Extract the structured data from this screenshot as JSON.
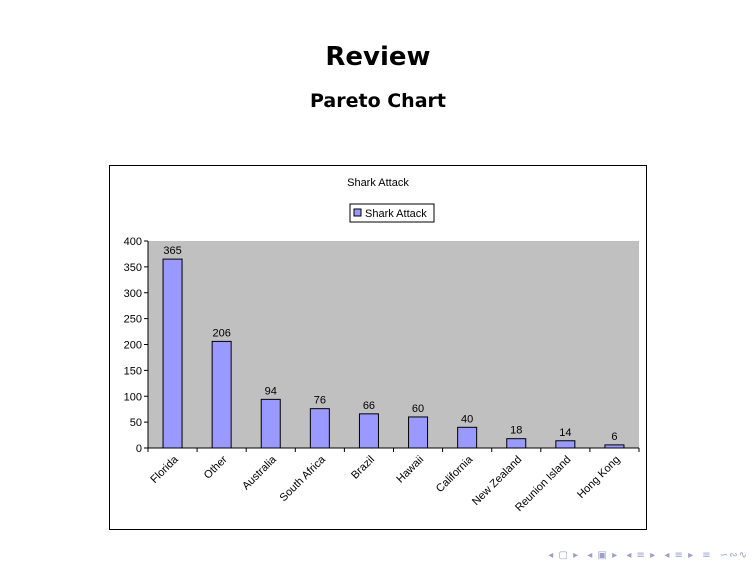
{
  "slide": {
    "title": "Review",
    "subtitle": "Pareto Chart"
  },
  "chart_data": {
    "type": "bar",
    "title": "Shark Attack",
    "legend": {
      "entries": [
        "Shark Attack"
      ],
      "placement": "top"
    },
    "categories": [
      "Florida",
      "Other",
      "Australia",
      "South Africa",
      "Brazil",
      "Hawaii",
      "California",
      "New Zealand",
      "Reunion Island",
      "Hong Kong"
    ],
    "series": [
      {
        "name": "Shark Attack",
        "values": [
          365,
          206,
          94,
          76,
          66,
          60,
          40,
          18,
          14,
          6
        ]
      }
    ],
    "data_labels": [
      "365",
      "206",
      "94",
      "76",
      "66",
      "60",
      "40",
      "18",
      "14",
      "6"
    ],
    "ylim": [
      0,
      400
    ],
    "yticks": [
      0,
      50,
      100,
      150,
      200,
      250,
      300,
      350,
      400
    ],
    "ytick_labels": [
      "0",
      "50",
      "100",
      "150",
      "200",
      "250",
      "300",
      "350",
      "400"
    ],
    "xlabel": "",
    "ylabel": "",
    "grid": false,
    "colors": {
      "bar": "#9999ff",
      "plot_background": "#c0c0c0",
      "bar_edge": "#000000"
    }
  },
  "navigation": {
    "icons": [
      "first-frame-icon",
      "prev-frame-icon",
      "prev-section-icon",
      "next-section-icon",
      "prev-subsection-icon",
      "next-subsection-icon",
      "align-icon",
      "search-icon"
    ]
  }
}
